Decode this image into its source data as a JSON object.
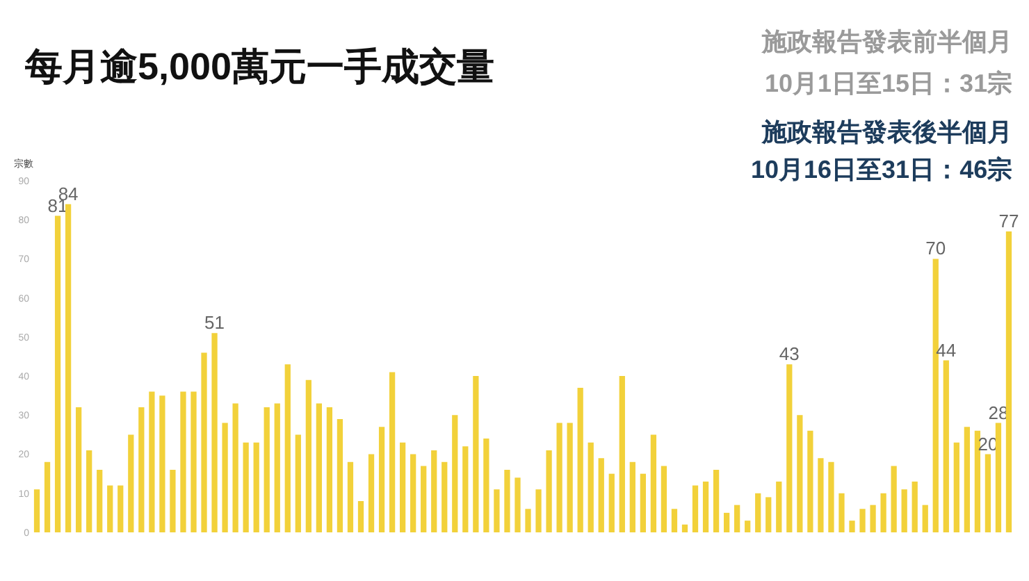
{
  "chart_data": {
    "type": "bar",
    "title": "每月逾5,000萬元一手成交量",
    "ylabel": "宗數",
    "annotations": [
      "施政報告發表前半個月",
      "10月1日至15日：31宗",
      "施政報告發表後半個月",
      "10月16日至31日：46宗"
    ],
    "categories": [
      null,
      null,
      null,
      null,
      null,
      null,
      null,
      null,
      null,
      null,
      null,
      null,
      null,
      null,
      null,
      null,
      null,
      null,
      null,
      null,
      null,
      null,
      null,
      null,
      null,
      null,
      null,
      null,
      null,
      null,
      null,
      null,
      null,
      null,
      null,
      null,
      null,
      null,
      null,
      null,
      null,
      null,
      null,
      null,
      null,
      null,
      null,
      null,
      null,
      null,
      null,
      null,
      null,
      null,
      null,
      null,
      null,
      null,
      null,
      null,
      null,
      null,
      null,
      null,
      null,
      null,
      null,
      null,
      null,
      null,
      null,
      null,
      null,
      null,
      null,
      null,
      null,
      null,
      null,
      null,
      null,
      null,
      null,
      null,
      null,
      null,
      null,
      null,
      null,
      null,
      null,
      null,
      null,
      null
    ],
    "values": [
      11,
      18,
      81,
      84,
      32,
      21,
      16,
      12,
      12,
      25,
      32,
      36,
      35,
      16,
      36,
      36,
      46,
      51,
      28,
      33,
      23,
      23,
      32,
      33,
      43,
      25,
      39,
      33,
      32,
      29,
      18,
      8,
      20,
      27,
      41,
      23,
      20,
      17,
      21,
      18,
      30,
      22,
      40,
      24,
      11,
      16,
      14,
      6,
      11,
      21,
      28,
      28,
      37,
      23,
      19,
      15,
      40,
      18,
      15,
      25,
      17,
      6,
      2,
      12,
      13,
      16,
      5,
      7,
      3,
      10,
      9,
      13,
      43,
      30,
      26,
      19,
      18,
      10,
      3,
      6,
      7,
      10,
      17,
      11,
      13,
      7,
      70,
      44,
      23,
      27,
      26,
      20,
      28,
      77
    ],
    "value_labels": [
      null,
      null,
      "81",
      "84",
      null,
      null,
      null,
      null,
      null,
      null,
      null,
      null,
      null,
      null,
      null,
      null,
      null,
      "51",
      null,
      null,
      null,
      null,
      null,
      null,
      null,
      null,
      null,
      null,
      null,
      null,
      null,
      null,
      null,
      null,
      null,
      null,
      null,
      null,
      null,
      null,
      null,
      null,
      null,
      null,
      null,
      null,
      null,
      null,
      null,
      null,
      null,
      null,
      null,
      null,
      null,
      null,
      null,
      null,
      null,
      null,
      null,
      null,
      null,
      null,
      null,
      null,
      null,
      null,
      null,
      null,
      null,
      null,
      "43",
      null,
      null,
      null,
      null,
      null,
      null,
      null,
      null,
      null,
      null,
      null,
      null,
      null,
      "70",
      "44",
      null,
      null,
      null,
      "20",
      "28",
      "77"
    ],
    "color": "#f2d13a",
    "ylim": [
      0,
      90
    ],
    "yticks": [
      0,
      10,
      20,
      30,
      40,
      50,
      60,
      70,
      80,
      90
    ],
    "grid": false
  }
}
